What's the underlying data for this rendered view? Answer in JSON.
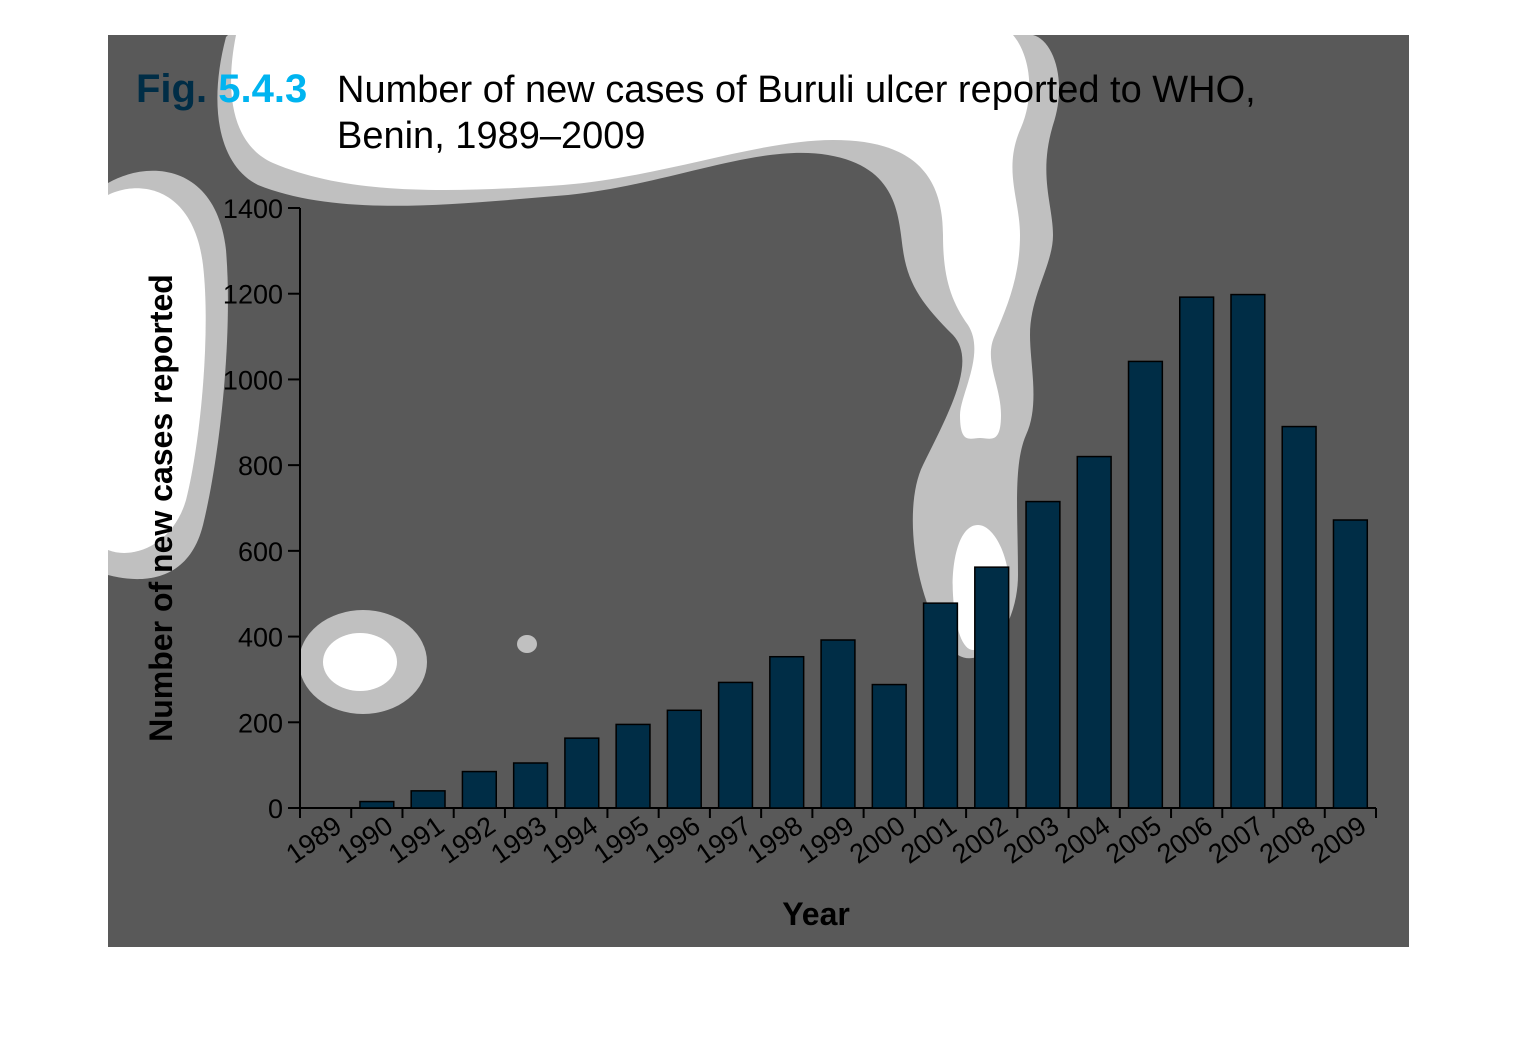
{
  "figure": {
    "fig_prefix": "Fig. ",
    "fig_number": "5.4.3",
    "title_line1": "Number of new cases of Buruli ulcer reported to WHO,",
    "title_line2": "Benin, 1989–2009"
  },
  "colors": {
    "panel_background": "#595959",
    "bar_fill": "#002d46",
    "bar_highlight": "#00b4f0",
    "fig_label": "#002d46",
    "fig_number": "#00b4f0",
    "blob_outer": "#c0c0c0",
    "blob_inner": "#ffffff"
  },
  "chart_data": {
    "type": "bar",
    "title": "Number of new cases of Buruli ulcer reported to WHO, Benin, 1989–2009",
    "xlabel": "Year",
    "ylabel": "Number of new cases reported",
    "categories": [
      "1989",
      "1990",
      "1991",
      "1992",
      "1993",
      "1994",
      "1995",
      "1996",
      "1997",
      "1998",
      "1999",
      "2000",
      "2001",
      "2002",
      "2003",
      "2004",
      "2005",
      "2006",
      "2007",
      "2008",
      "2009"
    ],
    "values": [
      0,
      15,
      40,
      85,
      105,
      163,
      195,
      228,
      293,
      353,
      392,
      288,
      478,
      562,
      715,
      820,
      1042,
      1192,
      1198,
      890,
      672
    ],
    "yticks": [
      0,
      200,
      400,
      600,
      800,
      1000,
      1200,
      1400
    ],
    "ylim": [
      0,
      1400
    ],
    "grid": false,
    "legend": "none"
  }
}
